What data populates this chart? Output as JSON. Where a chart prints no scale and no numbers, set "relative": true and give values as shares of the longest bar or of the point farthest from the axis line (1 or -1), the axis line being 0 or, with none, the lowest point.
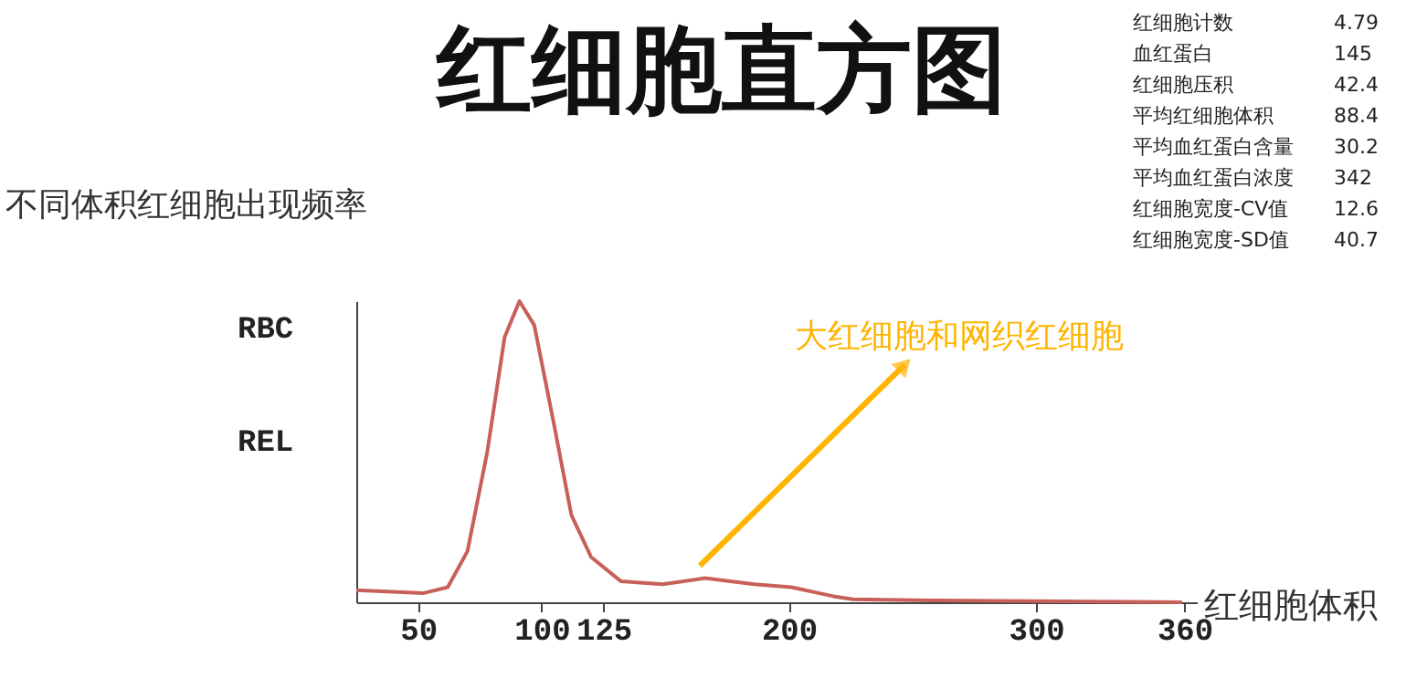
{
  "chart_data": {
    "type": "line",
    "title": "红细胞直方图",
    "subtitle": "不同体积红细胞出现频率",
    "xlabel": "红细胞体积",
    "ylabel": "RBC REL",
    "relative": true,
    "grid": false,
    "marker": "none",
    "line_style": "solid",
    "xlim": [
      25,
      365
    ],
    "xticks": [
      50,
      100,
      125,
      200,
      300,
      360
    ],
    "x": [
      25,
      52,
      62,
      70,
      78,
      85,
      91,
      97,
      105,
      112,
      120,
      132,
      149,
      166,
      186,
      201,
      218,
      226,
      260,
      359
    ],
    "series": [
      {
        "color": "#c8605a",
        "values": [
          0.04,
          0.03,
          0.05,
          0.17,
          0.5,
          0.88,
          1.0,
          0.92,
          0.59,
          0.29,
          0.15,
          0.07,
          0.06,
          0.08,
          0.06,
          0.05,
          0.02,
          0.01,
          0.006,
          0
        ]
      }
    ],
    "annotations": [
      "大红细胞和网织红细胞",
      "红细胞计数 4.79",
      "血红蛋白 145",
      "红细胞压积 42.4",
      "平均红细胞体积 88.4",
      "平均血红蛋白含量 30.2",
      "平均血红蛋白浓度 342",
      "红细胞宽度-CV值 12.6",
      "红细胞宽度-SD值 40.7"
    ]
  }
}
